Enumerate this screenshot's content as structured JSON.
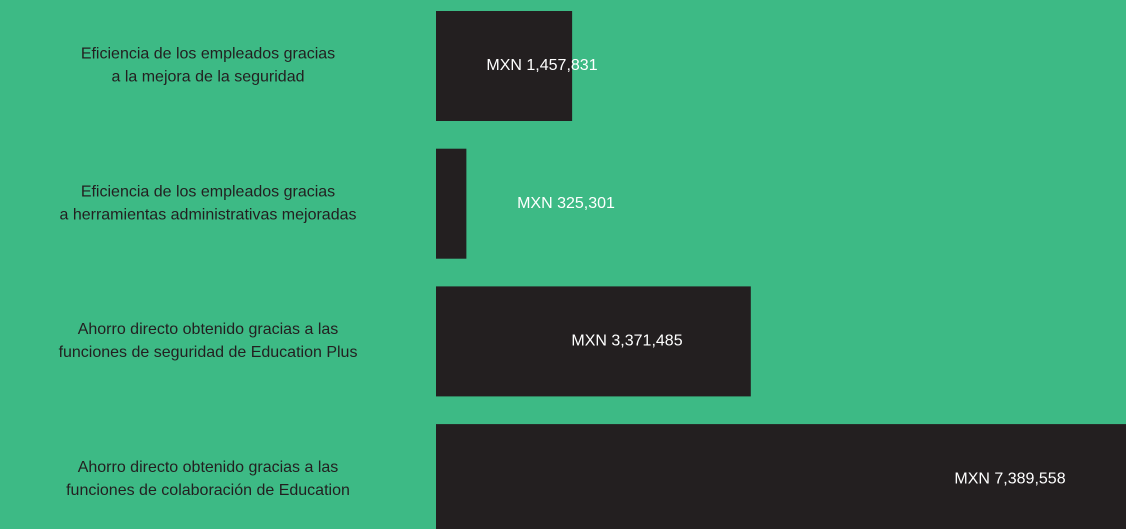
{
  "chart_data": {
    "type": "hbar",
    "categories": [
      [
        "Eficiencia de los empleados gracias",
        "a la mejora de la seguridad"
      ],
      [
        "Eficiencia de los empleados gracias",
        "a herramientas administrativas mejoradas"
      ],
      [
        "Ahorro directo obtenido gracias a las",
        "funciones de seguridad de Education Plus"
      ],
      [
        "Ahorro directo obtenido gracias a las",
        "funciones de colaboración de Education"
      ]
    ],
    "values": [
      1457831,
      325301,
      3371485,
      7389558
    ],
    "value_labels": [
      "MXN 1,457,831",
      "MXN 325,301",
      "MXN 3,371,485",
      "MXN 7,389,558"
    ],
    "color": "#231f20",
    "background": "#3dba85"
  }
}
